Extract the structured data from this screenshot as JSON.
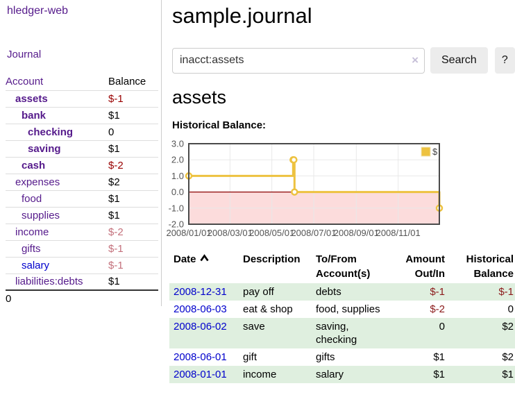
{
  "colors": {
    "accent_purple": "#551a8b",
    "link_blue": "#0000cc",
    "negative_strong": "#990000",
    "negative_light": "#c4717c",
    "table_negative": "#8b1a1a",
    "row_stripe_green": "#dfefdf",
    "series_gold": "#edc240",
    "zero_line": "#8b0000",
    "below_zero_fill": "#fcdcdc"
  },
  "app": {
    "brand": "hledger-web",
    "nav_journal": "Journal"
  },
  "sidebar": {
    "headers": {
      "account": "Account",
      "balance": "Balance"
    },
    "rows": [
      {
        "name": "assets",
        "level": 1,
        "bold": true,
        "balance": "$-1"
      },
      {
        "name": "bank",
        "level": 2,
        "bold": true,
        "balance": "$1"
      },
      {
        "name": "checking",
        "level": 3,
        "bold": true,
        "balance": "0"
      },
      {
        "name": "saving",
        "level": 3,
        "bold": true,
        "balance": "$1"
      },
      {
        "name": "cash",
        "level": 2,
        "bold": true,
        "balance": "$-2"
      },
      {
        "name": "expenses",
        "level": 1,
        "bold": false,
        "balance": "$2"
      },
      {
        "name": "food",
        "level": 2,
        "bold": false,
        "balance": "$1"
      },
      {
        "name": "supplies",
        "level": 2,
        "bold": false,
        "balance": "$1"
      },
      {
        "name": "income",
        "level": 1,
        "bold": false,
        "balance": "$-2"
      },
      {
        "name": "gifts",
        "level": 2,
        "bold": false,
        "balance": "$-1"
      },
      {
        "name": "salary",
        "level": 2,
        "bold": false,
        "balance": "$-1",
        "link_color": "blue"
      },
      {
        "name": "liabilities:debts",
        "level": 1,
        "bold": false,
        "balance": "$1"
      }
    ],
    "total": "0"
  },
  "main": {
    "title": "sample.journal",
    "search": {
      "value": "inacct:assets",
      "clear_icon": "×",
      "button_label": "Search",
      "help_label": "?"
    },
    "account_heading": "assets"
  },
  "chart_data": {
    "type": "line",
    "title": "Historical Balance:",
    "style": "steps",
    "xrange": [
      "2008-01-01",
      "2008-12-31"
    ],
    "ylim": [
      -2,
      3
    ],
    "yticks": [
      "3.0",
      "2.0",
      "1.0",
      "0.0",
      "-1.0",
      "-2.0"
    ],
    "xticks": [
      "2008/01/01",
      "2008/03/01",
      "2008/05/01",
      "2008/07/01",
      "2008/09/01",
      "2008/11/01"
    ],
    "series": [
      {
        "name": "$",
        "points": [
          [
            "2008-01-01",
            1
          ],
          [
            "2008-06-01",
            2
          ],
          [
            "2008-06-02",
            2
          ],
          [
            "2008-06-03",
            0
          ],
          [
            "2008-12-31",
            -1
          ]
        ]
      }
    ],
    "grid": true,
    "legend_position": "top-right",
    "below_zero_shaded": true
  },
  "register": {
    "headers": {
      "date": "Date",
      "description": "Description",
      "accounts": "To/From Account(s)",
      "amount": "Amount Out/In",
      "balance": "Historical Balance"
    },
    "sort": {
      "column": "date",
      "direction": "ascending"
    },
    "rows": [
      {
        "date": "2008-12-31",
        "description": "pay off",
        "accounts": "debts",
        "amount": "$-1",
        "balance": "$-1"
      },
      {
        "date": "2008-06-03",
        "description": "eat & shop",
        "accounts": "food, supplies",
        "amount": "$-2",
        "balance": "0"
      },
      {
        "date": "2008-06-02",
        "description": "save",
        "accounts": "saving, checking",
        "amount": "0",
        "balance": "$2"
      },
      {
        "date": "2008-06-01",
        "description": "gift",
        "accounts": "gifts",
        "amount": "$1",
        "balance": "$2"
      },
      {
        "date": "2008-01-01",
        "description": "income",
        "accounts": "salary",
        "amount": "$1",
        "balance": "$1"
      }
    ]
  }
}
